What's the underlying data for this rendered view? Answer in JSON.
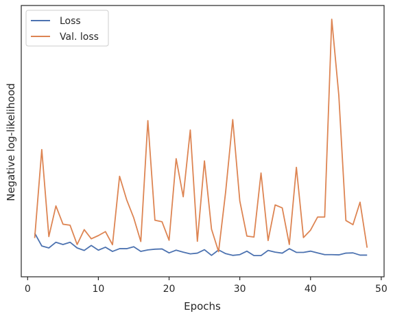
{
  "chart_data": {
    "type": "line",
    "title": "",
    "xlabel": "Epochs",
    "ylabel": "Negative log-likelihood",
    "xlim": [
      -0.9,
      50.4
    ],
    "x_ticks": [
      0,
      10,
      20,
      30,
      40,
      50
    ],
    "ylim": [
      0,
      1
    ],
    "y_ticks": [],
    "y_tick_labels_shown": false,
    "grid": false,
    "legend": "top-left",
    "x": [
      1,
      2,
      3,
      4,
      5,
      6,
      7,
      8,
      9,
      10,
      11,
      12,
      13,
      14,
      15,
      16,
      17,
      18,
      19,
      20,
      21,
      22,
      23,
      24,
      25,
      26,
      27,
      28,
      29,
      30,
      31,
      32,
      33,
      34,
      35,
      36,
      37,
      38,
      39,
      40,
      41,
      42,
      43,
      44,
      45,
      46,
      47,
      48
    ],
    "series": [
      {
        "name": "Loss",
        "color": "#4c72b0",
        "values": [
          0.135,
          0.083,
          0.075,
          0.098,
          0.089,
          0.098,
          0.075,
          0.065,
          0.085,
          0.066,
          0.078,
          0.061,
          0.072,
          0.072,
          0.08,
          0.061,
          0.067,
          0.07,
          0.071,
          0.055,
          0.066,
          0.058,
          0.051,
          0.054,
          0.068,
          0.045,
          0.067,
          0.052,
          0.045,
          0.048,
          0.062,
          0.044,
          0.044,
          0.065,
          0.058,
          0.054,
          0.072,
          0.057,
          0.057,
          0.062,
          0.055,
          0.048,
          0.048,
          0.047,
          0.054,
          0.055,
          0.046,
          0.046
        ]
      },
      {
        "name": "Val. loss",
        "color": "#dd8452",
        "values": [
          0.115,
          0.473,
          0.121,
          0.245,
          0.171,
          0.167,
          0.089,
          0.149,
          0.112,
          0.125,
          0.141,
          0.088,
          0.365,
          0.27,
          0.197,
          0.101,
          0.59,
          0.187,
          0.181,
          0.106,
          0.436,
          0.282,
          0.552,
          0.102,
          0.427,
          0.151,
          0.06,
          0.302,
          0.594,
          0.265,
          0.123,
          0.119,
          0.378,
          0.105,
          0.249,
          0.237,
          0.089,
          0.401,
          0.117,
          0.147,
          0.2,
          0.2,
          1.0,
          0.692,
          0.186,
          0.169,
          0.26,
          0.076
        ]
      }
    ]
  }
}
